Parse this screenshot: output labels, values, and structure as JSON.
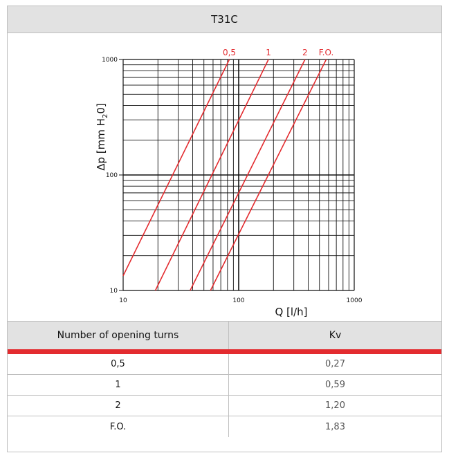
{
  "title": "T31C",
  "chart_data": {
    "type": "line",
    "xlabel": "Q [l/h]",
    "ylabel_main": "Δp [mm H",
    "ylabel_sub": "2",
    "ylabel_end": "0]",
    "x_scale": "log",
    "y_scale": "log",
    "xlim": [
      10,
      1000
    ],
    "ylim": [
      10,
      1000
    ],
    "x_ticks": [
      {
        "value": 10,
        "label": "10"
      },
      {
        "value": 100,
        "label": "100"
      },
      {
        "value": 1000,
        "label": "1000"
      }
    ],
    "y_ticks": [
      {
        "value": 10,
        "label": "10"
      },
      {
        "value": 100,
        "label": "100"
      },
      {
        "value": 1000,
        "label": "1000"
      }
    ],
    "grid": true,
    "line_color": "#e32b2f",
    "series": [
      {
        "name": "0,5",
        "x": [
          10,
          83
        ],
        "y": [
          13.4,
          1000
        ]
      },
      {
        "name": "1",
        "x": [
          19,
          181
        ],
        "y": [
          10,
          1000
        ]
      },
      {
        "name": "2",
        "x": [
          38,
          375
        ],
        "y": [
          10,
          1000
        ]
      },
      {
        "name": "F.O.",
        "x": [
          57,
          572
        ],
        "y": [
          10,
          1000
        ]
      }
    ]
  },
  "table": {
    "headers": [
      "Number of opening turns",
      "Kv"
    ],
    "rows": [
      [
        "0,5",
        "0,27"
      ],
      [
        "1",
        "0,59"
      ],
      [
        "2",
        "1,20"
      ],
      [
        "F.O.",
        "1,83"
      ]
    ]
  }
}
